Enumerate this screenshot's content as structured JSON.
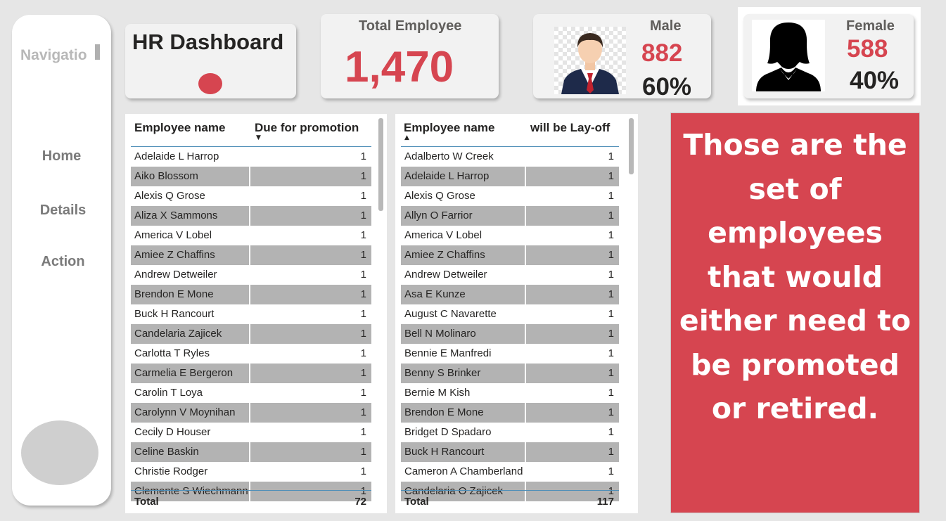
{
  "navigation": {
    "title": "Navigatio",
    "items": [
      {
        "label": "Home"
      },
      {
        "label": "Details"
      },
      {
        "label": "Action"
      }
    ]
  },
  "header": {
    "title": "HR Dashboard"
  },
  "kpis": {
    "total": {
      "label": "Total Employee",
      "value": "1,470"
    },
    "male": {
      "label": "Male",
      "value": "882",
      "percent": "60%"
    },
    "female": {
      "label": "Female",
      "value": "588",
      "percent": "40%"
    }
  },
  "promotion_table": {
    "col_name": "Employee name",
    "col_value": "Due for promotion",
    "sort": "descending",
    "rows": [
      {
        "name": "Adelaide L Harrop",
        "value": "1"
      },
      {
        "name": "Aiko Blossom",
        "value": "1"
      },
      {
        "name": "Alexis Q Grose",
        "value": "1"
      },
      {
        "name": "Aliza X Sammons",
        "value": "1"
      },
      {
        "name": "America V Lobel",
        "value": "1"
      },
      {
        "name": "Amiee Z Chaffins",
        "value": "1"
      },
      {
        "name": "Andrew Detweiler",
        "value": "1"
      },
      {
        "name": "Brendon E Mone",
        "value": "1"
      },
      {
        "name": "Buck H Rancourt",
        "value": "1"
      },
      {
        "name": "Candelaria Zajicek",
        "value": "1"
      },
      {
        "name": "Carlotta T Ryles",
        "value": "1"
      },
      {
        "name": "Carmelia E Bergeron",
        "value": "1"
      },
      {
        "name": "Carolin T Loya",
        "value": "1"
      },
      {
        "name": "Carolynn V Moynihan",
        "value": "1"
      },
      {
        "name": "Cecily D Houser",
        "value": "1"
      },
      {
        "name": "Celine Baskin",
        "value": "1"
      },
      {
        "name": "Christie Rodger",
        "value": "1"
      },
      {
        "name": "Clemente S Wiechmann",
        "value": "1"
      }
    ],
    "total_label": "Total",
    "total_value": "72"
  },
  "layoff_table": {
    "col_name": "Employee name",
    "col_value": "will be Lay-off",
    "sort": "ascending",
    "rows": [
      {
        "name": "Adalberto W Creek",
        "value": "1"
      },
      {
        "name": "Adelaide L Harrop",
        "value": "1"
      },
      {
        "name": "Alexis Q Grose",
        "value": "1"
      },
      {
        "name": "Allyn O Farrior",
        "value": "1"
      },
      {
        "name": "America V Lobel",
        "value": "1"
      },
      {
        "name": "Amiee Z Chaffins",
        "value": "1"
      },
      {
        "name": "Andrew Detweiler",
        "value": "1"
      },
      {
        "name": "Asa E Kunze",
        "value": "1"
      },
      {
        "name": "August C Navarette",
        "value": "1"
      },
      {
        "name": "Bell N Molinaro",
        "value": "1"
      },
      {
        "name": "Bennie E Manfredi",
        "value": "1"
      },
      {
        "name": "Benny S Brinker",
        "value": "1"
      },
      {
        "name": "Bernie M Kish",
        "value": "1"
      },
      {
        "name": "Brendon E Mone",
        "value": "1"
      },
      {
        "name": "Bridget D Spadaro",
        "value": "1"
      },
      {
        "name": "Buck H Rancourt",
        "value": "1"
      },
      {
        "name": "Cameron A Chamberland",
        "value": "1"
      },
      {
        "name": "Candelaria O Zajicek",
        "value": "1"
      }
    ],
    "total_label": "Total",
    "total_value": "117"
  },
  "message": {
    "text": "Those are the set of employees that would either need to be promoted or retired."
  },
  "colors": {
    "accent": "#d64550",
    "background": "#e6e6e6",
    "alt_row": "#b3b3b3",
    "nav_text": "#7b7b7b"
  },
  "icons": {
    "male": "male-avatar-icon",
    "female": "female-avatar-icon"
  }
}
